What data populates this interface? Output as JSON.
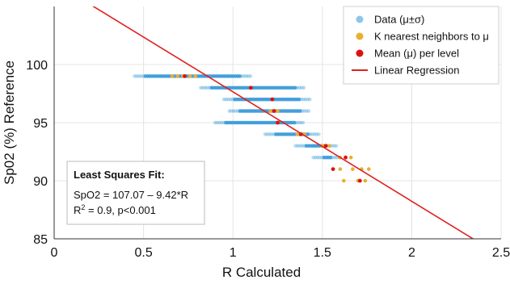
{
  "chart_data": {
    "type": "scatter",
    "title": "",
    "xlabel": "R Calculated",
    "ylabel": "Sp02 (%) Reference",
    "xlim": [
      0,
      2.5
    ],
    "ylim": [
      85,
      105
    ],
    "xticks": [
      "0",
      "0.5",
      "1",
      "1.5",
      "2",
      "2.5"
    ],
    "xtick_values": [
      0,
      0.5,
      1,
      1.5,
      2,
      2.5
    ],
    "yticks": [
      "85",
      "90",
      "95",
      "100"
    ],
    "ytick_values": [
      85,
      90,
      95,
      100
    ],
    "grid": true,
    "legend_position": "top-right",
    "colors": {
      "data": "#3a9ad9",
      "knn": "#e8b030",
      "mean": "#e01010",
      "regression": "#e02020"
    },
    "legend": [
      {
        "label": "Data (μ±σ)",
        "marker": "circle",
        "color": "#8ec6ea"
      },
      {
        "label": "K nearest neighbors to μ",
        "marker": "circle",
        "color": "#e8b030"
      },
      {
        "label": "Mean (μ) per level",
        "marker": "circle",
        "color": "#e01010"
      },
      {
        "label": "Linear Regression",
        "marker": "line",
        "color": "#e02020"
      }
    ],
    "series": [
      {
        "name": "Data (μ±σ)",
        "role": "data",
        "segments": [
          {
            "y": 99,
            "x_start": 0.45,
            "x_end": 1.1
          },
          {
            "y": 98,
            "x_start": 0.82,
            "x_end": 1.4
          },
          {
            "y": 97,
            "x_start": 0.95,
            "x_end": 1.43
          },
          {
            "y": 96,
            "x_start": 0.98,
            "x_end": 1.43
          },
          {
            "y": 95,
            "x_start": 0.9,
            "x_end": 1.4
          },
          {
            "y": 94,
            "x_start": 1.18,
            "x_end": 1.48
          },
          {
            "y": 93,
            "x_start": 1.35,
            "x_end": 1.58
          },
          {
            "y": 92,
            "x_start": 1.45,
            "x_end": 1.6
          }
        ]
      },
      {
        "name": "K nearest neighbors to μ",
        "role": "knn",
        "points": [
          {
            "x": 0.66,
            "y": 99
          },
          {
            "x": 0.69,
            "y": 99
          },
          {
            "x": 0.72,
            "y": 99
          },
          {
            "x": 0.76,
            "y": 99
          },
          {
            "x": 0.79,
            "y": 99
          },
          {
            "x": 1.21,
            "y": 96
          },
          {
            "x": 1.25,
            "y": 96
          },
          {
            "x": 1.36,
            "y": 94
          },
          {
            "x": 1.4,
            "y": 94
          },
          {
            "x": 1.5,
            "y": 93
          },
          {
            "x": 1.54,
            "y": 93
          },
          {
            "x": 1.6,
            "y": 92
          },
          {
            "x": 1.66,
            "y": 92
          },
          {
            "x": 1.6,
            "y": 91
          },
          {
            "x": 1.67,
            "y": 91
          },
          {
            "x": 1.72,
            "y": 91
          },
          {
            "x": 1.76,
            "y": 91
          },
          {
            "x": 1.62,
            "y": 90
          },
          {
            "x": 1.7,
            "y": 90
          },
          {
            "x": 1.74,
            "y": 90
          }
        ]
      },
      {
        "name": "Mean (μ) per level",
        "role": "mean",
        "points": [
          {
            "x": 0.73,
            "y": 99
          },
          {
            "x": 1.1,
            "y": 98
          },
          {
            "x": 1.22,
            "y": 97
          },
          {
            "x": 1.23,
            "y": 96
          },
          {
            "x": 1.25,
            "y": 95
          },
          {
            "x": 1.38,
            "y": 94
          },
          {
            "x": 1.52,
            "y": 93
          },
          {
            "x": 1.63,
            "y": 92
          },
          {
            "x": 1.56,
            "y": 91
          },
          {
            "x": 1.71,
            "y": 90
          }
        ]
      },
      {
        "name": "Linear Regression",
        "role": "regression",
        "intercept": 107.07,
        "slope": -9.42
      }
    ],
    "annotation": {
      "title": "Least Squares Fit:",
      "line1": "SpO2 = 107.07 – 9.42*R",
      "line2_prefix": "R",
      "line2_sup": "2",
      "line2_suffix": " = 0.9, p<0.001"
    }
  }
}
